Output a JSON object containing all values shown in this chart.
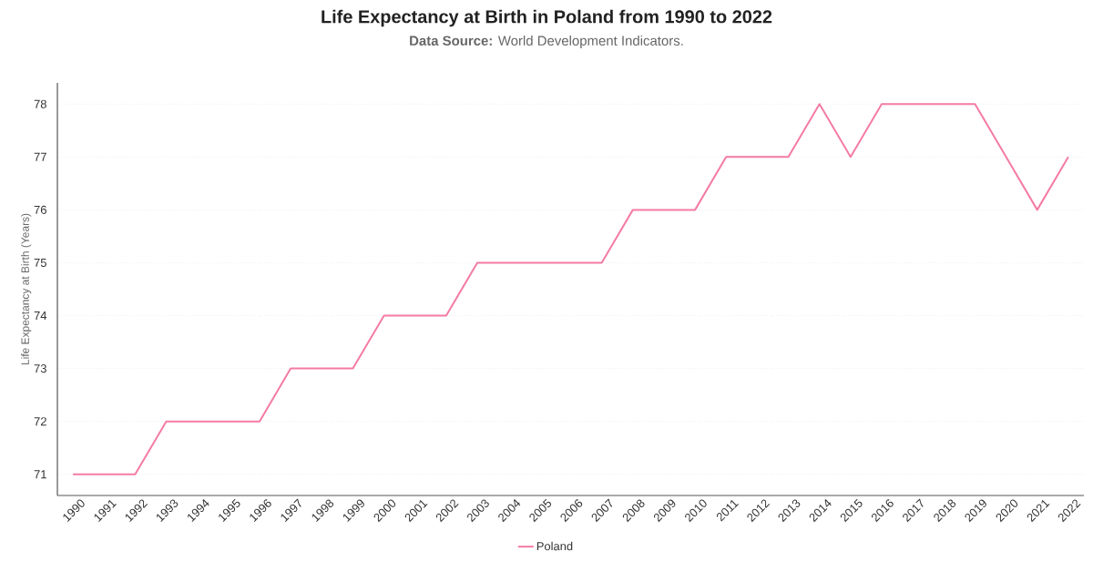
{
  "chart_data": {
    "type": "line",
    "title": "Life Expectancy at Birth in Poland from 1990 to 2022",
    "subtitle": "**Data Source:** World Development Indicators.",
    "ylabel": "Life Expectancy at Birth (Years)",
    "categories": [
      "1990",
      "1991",
      "1992",
      "1993",
      "1994",
      "1995",
      "1996",
      "1997",
      "1998",
      "1999",
      "2000",
      "2001",
      "2002",
      "2003",
      "2004",
      "2005",
      "2006",
      "2007",
      "2008",
      "2009",
      "2010",
      "2011",
      "2012",
      "2013",
      "2014",
      "2015",
      "2016",
      "2017",
      "2018",
      "2019",
      "2020",
      "2021",
      "2022"
    ],
    "series": [
      {
        "name": "Poland",
        "color": "#f47ba4",
        "values": [
          71,
          71,
          71,
          72,
          72,
          72,
          72,
          73,
          73,
          73,
          74,
          74,
          74,
          75,
          75,
          75,
          75,
          75,
          76,
          76,
          76,
          77,
          77,
          77,
          78,
          77,
          78,
          78,
          78,
          78,
          77,
          76,
          77
        ]
      }
    ],
    "ylim": [
      70.6,
      78.4
    ],
    "yticks": [
      71,
      72,
      73,
      74,
      75,
      76,
      77,
      78
    ],
    "grid": "y",
    "legend": "bottom",
    "marker": "none",
    "line_style": "solid"
  }
}
